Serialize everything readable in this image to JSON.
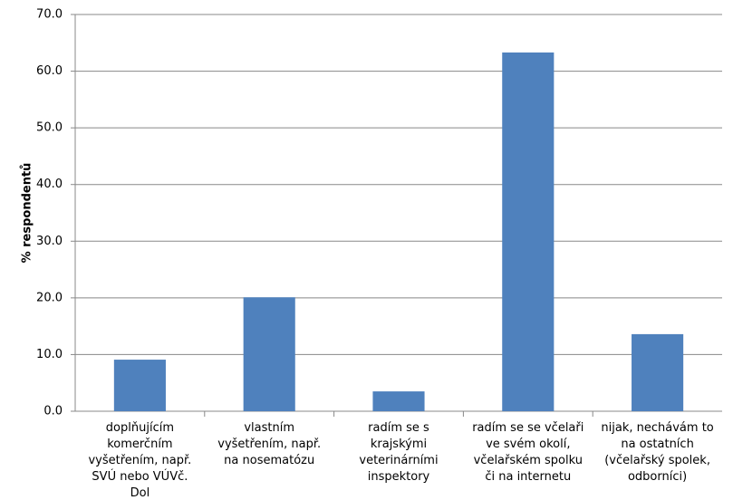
{
  "chart_data": {
    "type": "bar",
    "y_label": "% respondentů",
    "categories": [
      "doplňujícím komerčním vyšetřením, např. SVÚ nebo VÚVč. Dol",
      "vlastním vyšetřením, např. na nosematózu",
      "radím se s krajskými veterinárními inspektory",
      "radím se se včelaři ve svém okolí, včelařském spolku či na internetu",
      "nijak, nechávám to na ostatních (včelařský spolek, odborníci)"
    ],
    "values": [
      9.1,
      20.1,
      3.5,
      63.3,
      13.6
    ],
    "color": "#4f81bd",
    "ylim": [
      0,
      70
    ],
    "yticks": [
      {
        "value": 0,
        "label": "0.0"
      },
      {
        "value": 10,
        "label": "10.0"
      },
      {
        "value": 20,
        "label": "20.0"
      },
      {
        "value": 30,
        "label": "30.0"
      },
      {
        "value": 40,
        "label": "40.0"
      },
      {
        "value": 50,
        "label": "50.0"
      },
      {
        "value": 60,
        "label": "60.0"
      },
      {
        "value": 70,
        "label": "70.0"
      }
    ],
    "grid": true
  }
}
